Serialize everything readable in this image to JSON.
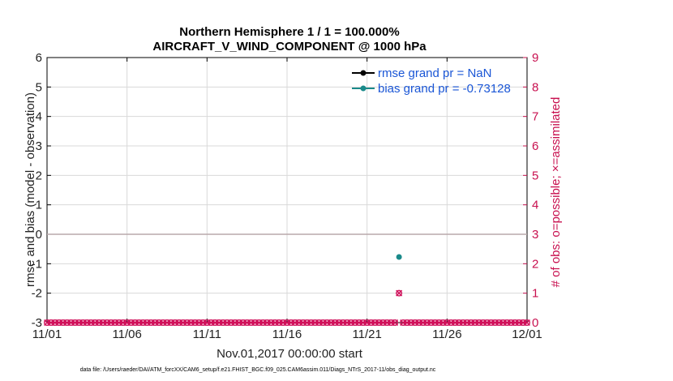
{
  "chart_data": {
    "type": "line",
    "title": [
      "Northern Hemisphere 1 / 1 = 100.000%",
      "AIRCRAFT_V_WIND_COMPONENT @ 1000 hPa"
    ],
    "xlabel": "Nov.01,2017 00:00:00 start",
    "ylabel": "rmse and bias (model - observation)",
    "y2label": "# of obs: o=possible; ×=assimilated",
    "xlim": [
      0,
      30
    ],
    "ylim": [
      -3,
      6
    ],
    "y2lim": [
      0,
      9
    ],
    "x_ticks": [
      {
        "value": 0,
        "label": "11/01"
      },
      {
        "value": 5,
        "label": "11/06"
      },
      {
        "value": 10,
        "label": "11/11"
      },
      {
        "value": 15,
        "label": "11/16"
      },
      {
        "value": 20,
        "label": "11/21"
      },
      {
        "value": 25,
        "label": "11/26"
      },
      {
        "value": 30,
        "label": "12/01"
      }
    ],
    "y_ticks": [
      "-3",
      "-2",
      "-1",
      "0",
      "1",
      "2",
      "3",
      "4",
      "5",
      "6"
    ],
    "y2_ticks": [
      "0",
      "1",
      "2",
      "3",
      "4",
      "5",
      "6",
      "7",
      "8",
      "9"
    ],
    "grid": true,
    "zero_line": 0,
    "series": [
      {
        "name": "rmse grand pr = NaN",
        "color": "#000000",
        "x": [],
        "y": []
      },
      {
        "name": "bias grand pr = -0.73128",
        "color": "#1a8a8a",
        "x": [
          22
        ],
        "y": [
          -0.77
        ]
      },
      {
        "name": "obs possible",
        "axis": "right",
        "color": "#d0105a",
        "x": [
          22
        ],
        "y": [
          1
        ]
      },
      {
        "name": "obs assimilated",
        "axis": "right",
        "color": "#d0105a",
        "x": [
          22
        ],
        "y": [
          1
        ]
      },
      {
        "name": "obs count baseline",
        "axis": "right",
        "color": "#d0105a",
        "x_range": [
          0,
          30
        ],
        "x_step": 0.25,
        "gap_at": 22,
        "y": 0
      }
    ],
    "legend": "top-right"
  },
  "footer": "data file: /Users/raeder/DAI/ATM_forcXX/CAM6_setup/f.e21.FHIST_BGC.f09_025.CAM6assim.011/Diags_NTrS_2017-11/obs_diag_output.nc"
}
